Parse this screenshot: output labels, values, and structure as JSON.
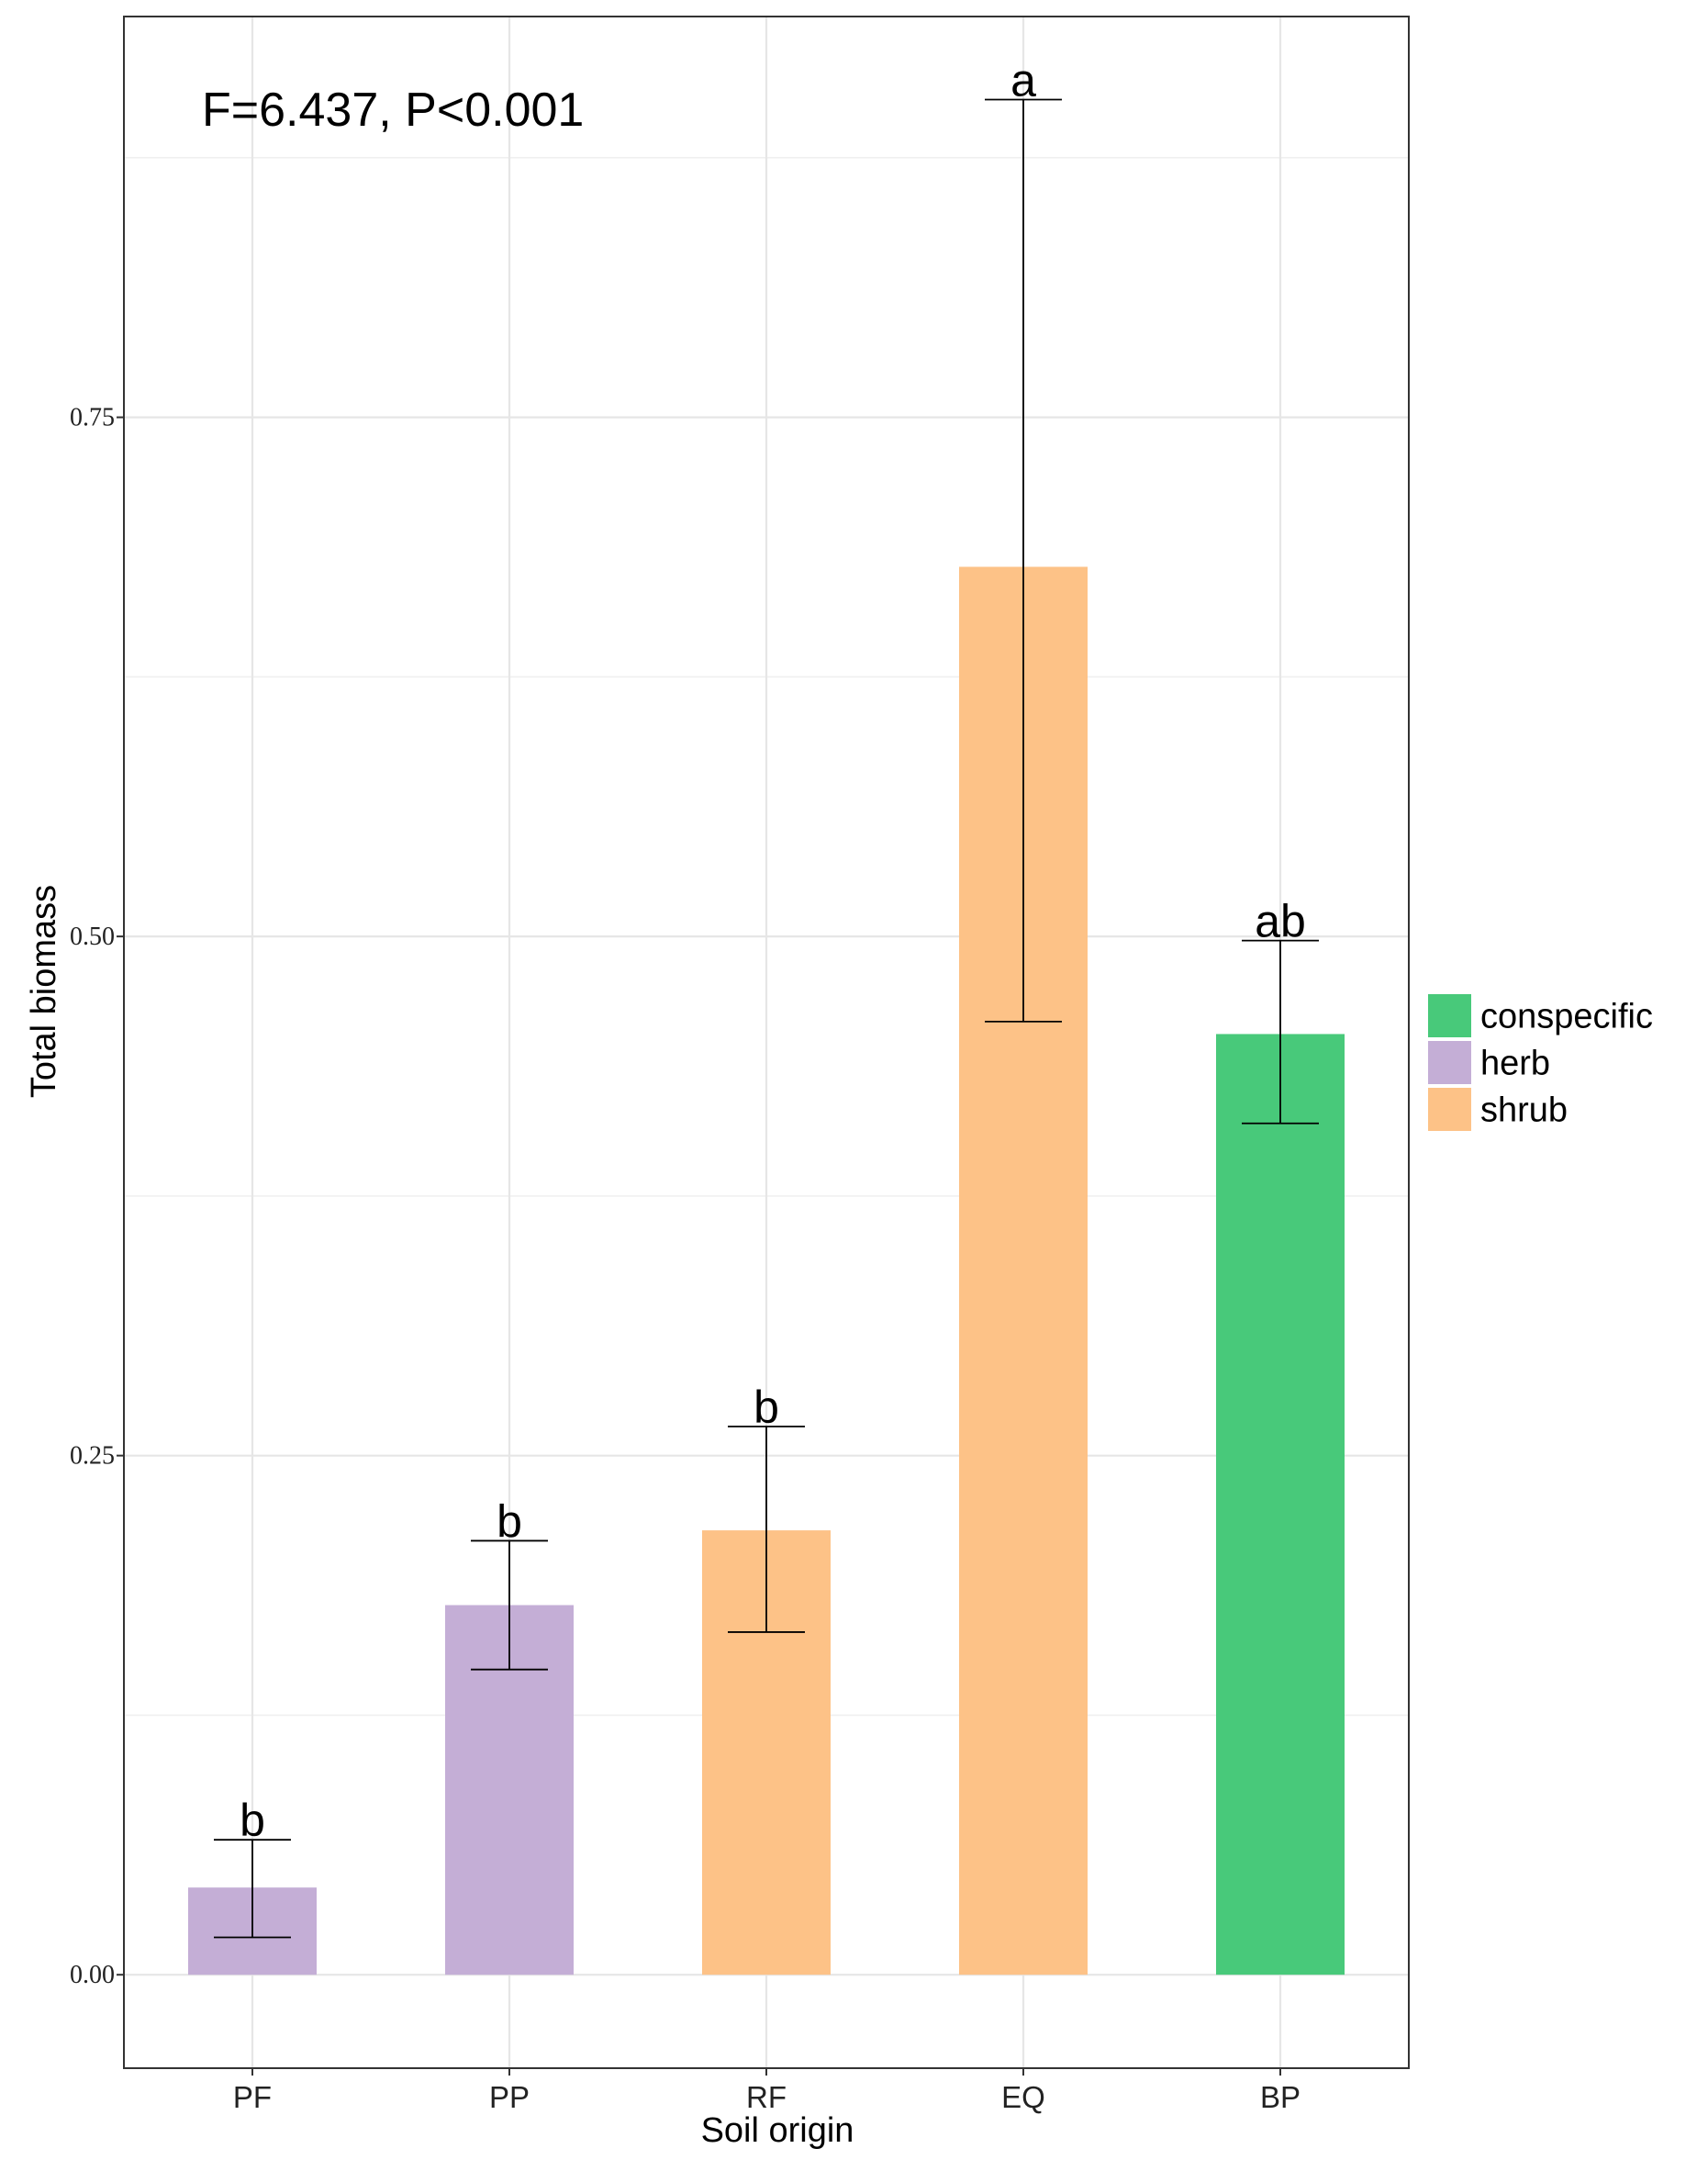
{
  "chart_data": {
    "type": "bar",
    "title": "",
    "annotation": "F=6.437, P<0.001",
    "xlabel": "Soil origin",
    "ylabel": "Total biomass",
    "categories": [
      "PF",
      "PP",
      "RF",
      "EQ",
      "BP"
    ],
    "values": [
      0.042,
      0.178,
      0.214,
      0.678,
      0.453
    ],
    "error_low": [
      0.018,
      0.147,
      0.165,
      0.459,
      0.41
    ],
    "error_high": [
      0.065,
      0.209,
      0.264,
      0.903,
      0.498
    ],
    "groups": [
      "herb",
      "herb",
      "shrub",
      "shrub",
      "conspecific"
    ],
    "significance_letters": [
      "b",
      "b",
      "b",
      "a",
      "ab"
    ],
    "ylim": [
      -0.045,
      0.943
    ],
    "yticks": [
      0.0,
      0.25,
      0.5,
      0.75
    ],
    "ytick_labels": [
      "0.00",
      "0.25",
      "0.50",
      "0.75"
    ],
    "grid": true,
    "legend": {
      "placement": "right",
      "entries": [
        {
          "label": "conspecific",
          "color": "#48C97A"
        },
        {
          "label": "herb",
          "color": "#C4AED6"
        },
        {
          "label": "shrub",
          "color": "#FDC287"
        }
      ]
    }
  }
}
